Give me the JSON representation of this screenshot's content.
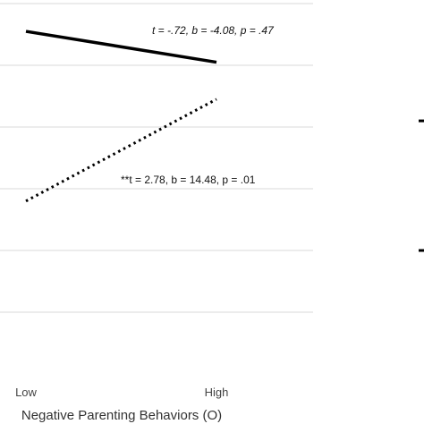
{
  "chart_data": {
    "type": "line",
    "xlabel": "Negative Parenting Behaviors (O)",
    "ylabel": "",
    "categories": [
      "Low",
      "High"
    ],
    "ylim": [
      0,
      6
    ],
    "gridlines": [
      1,
      2,
      3,
      4,
      5,
      6
    ],
    "grid": true,
    "series": [
      {
        "style": "solid",
        "color": "#000000",
        "values": [
          5.55,
          5.05
        ]
      },
      {
        "style": "dotted",
        "color": "#000000",
        "values": [
          2.8,
          4.45
        ]
      }
    ],
    "annotations": [
      {
        "series": 0,
        "text": "t = -.72, b = -4.08, p = .47"
      },
      {
        "series": 1,
        "text": "**t = 2.78, b = 14.48, p = .01"
      }
    ],
    "second_panel_partial_markers": [
      4.1,
      2.0
    ]
  }
}
